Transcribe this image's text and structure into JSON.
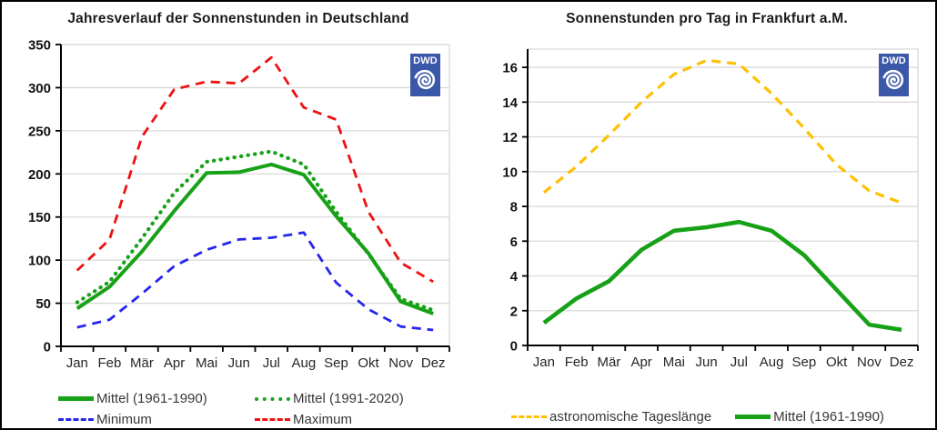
{
  "logo": {
    "text": "DWD"
  },
  "colors": {
    "green": "#17a117",
    "blue": "#2525ec",
    "red": "#ee1111",
    "gold": "#ffc000",
    "grid": "#d9d9d9",
    "axis": "#000000",
    "logo_blue": "#3a57a8"
  },
  "chart_data": [
    {
      "type": "line",
      "title": "Jahresverlauf der Sonnenstunden in Deutschland",
      "categories": [
        "Jan",
        "Feb",
        "Mär",
        "Apr",
        "Mai",
        "Jun",
        "Jul",
        "Aug",
        "Sep",
        "Okt",
        "Nov",
        "Dez"
      ],
      "ylim": [
        0,
        350
      ],
      "ytick_step": 50,
      "ytick_max": 350,
      "grid": true,
      "legend_position": "bottom",
      "series": [
        {
          "name": "Mittel (1961-1990)",
          "style": "solid",
          "color_key": "green",
          "width": 4,
          "values": [
            44,
            69,
            110,
            157,
            201,
            202,
            211,
            199,
            151,
            108,
            52,
            38
          ]
        },
        {
          "name": "Mittel (1991-2020)",
          "style": "dotted",
          "color_key": "green",
          "width": 4.2,
          "values": [
            51,
            75,
            125,
            178,
            214,
            220,
            226,
            211,
            156,
            107,
            55,
            42
          ]
        },
        {
          "name": "Minimum",
          "style": "dashed",
          "color_key": "blue",
          "width": 2.8,
          "values": [
            22,
            31,
            61,
            93,
            112,
            124,
            126,
            132,
            74,
            43,
            23,
            19
          ]
        },
        {
          "name": "Maximum",
          "style": "dashed",
          "color_key": "red",
          "width": 2.8,
          "values": [
            88,
            124,
            243,
            298,
            307,
            305,
            335,
            277,
            263,
            156,
            97,
            75
          ]
        }
      ]
    },
    {
      "type": "line",
      "title": "Sonnenstunden pro Tag in Frankfurt a.M.",
      "categories": [
        "Jan",
        "Feb",
        "Mär",
        "Apr",
        "Mai",
        "Jun",
        "Jul",
        "Aug",
        "Sep",
        "Okt",
        "Nov",
        "Dez"
      ],
      "ylim": [
        0,
        17.05
      ],
      "ytick_step": 2,
      "ytick_max": 16,
      "grid": true,
      "legend_position": "bottom",
      "series": [
        {
          "name": "astronomische Tageslänge",
          "style": "dashed",
          "color_key": "gold",
          "width": 3.2,
          "values": [
            8.8,
            10.3,
            12.1,
            14.0,
            15.6,
            16.4,
            16.2,
            14.5,
            12.5,
            10.4,
            8.9,
            8.2
          ]
        },
        {
          "name": "Mittel (1961-1990)",
          "style": "solid",
          "color_key": "green",
          "width": 4.6,
          "values": [
            1.3,
            2.7,
            3.7,
            5.5,
            6.6,
            6.8,
            7.1,
            6.6,
            5.2,
            3.2,
            1.2,
            0.9
          ]
        }
      ]
    }
  ]
}
